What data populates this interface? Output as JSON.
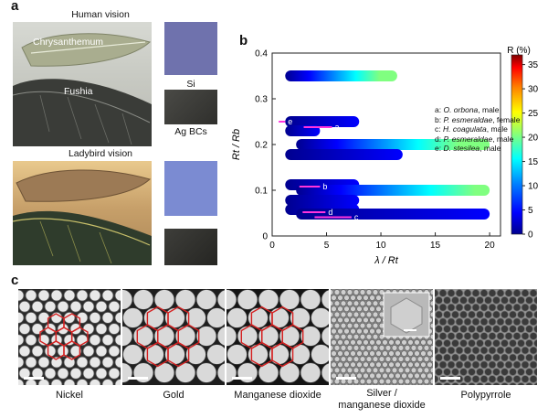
{
  "panel_a": {
    "label": "a",
    "human_title": "Human vision",
    "ladybird_title": "Ladybird vision",
    "leaf_labels": [
      "Chrysanthemum",
      "Fushia"
    ],
    "swatch_labels": [
      "Si",
      "Ag BCs"
    ]
  },
  "panel_b": {
    "label": "b",
    "legend": [
      {
        "letter": "a",
        "sep": ": ",
        "species": "O. orbona",
        "sex": ", male"
      },
      {
        "letter": "b",
        "sep": ": ",
        "species": "P. esmeraldae",
        "sex": ", female"
      },
      {
        "letter": "c",
        "sep": ": ",
        "species": "H. coagulata",
        "sex": ", male"
      },
      {
        "letter": "d",
        "sep": ": ",
        "species": "P. esmeraldae",
        "sex": ", male"
      },
      {
        "letter": "e",
        "sep": ": ",
        "species": "D. stesilea",
        "sex": ", male"
      }
    ]
  },
  "chart_data": {
    "type": "heatmap",
    "xlabel": "λ / Rt",
    "ylabel": "Rt / Rb",
    "xlim": [
      0,
      21
    ],
    "ylim": [
      0,
      0.4
    ],
    "x_ticks": [
      "0",
      "5",
      "10",
      "15",
      "20"
    ],
    "y_ticks": [
      "0",
      "0.1",
      "0.2",
      "0.3",
      "0.4"
    ],
    "colorbar": {
      "title": "R (%)",
      "range": [
        0,
        37
      ],
      "ticks": [
        "0",
        "5",
        "10",
        "15",
        "20",
        "25",
        "30",
        "35"
      ],
      "colors": [
        "#00008f",
        "#0000ff",
        "#0080ff",
        "#00ffff",
        "#80ff80",
        "#ffff00",
        "#ff8000",
        "#ff0000",
        "#800000"
      ]
    },
    "bands": [
      {
        "y": 0.35,
        "x0": 1.2,
        "x1": 11.5,
        "rmax": 22
      },
      {
        "y": 0.25,
        "x0": 1.2,
        "x1": 8.0,
        "rmax": 2
      },
      {
        "y": 0.23,
        "x0": 1.2,
        "x1": 4.4,
        "rmax": 2
      },
      {
        "y": 0.2,
        "x0": 2.2,
        "x1": 20.0,
        "rmax": 22
      },
      {
        "y": 0.178,
        "x0": 1.2,
        "x1": 12.0,
        "rmax": 2
      },
      {
        "y": 0.112,
        "x0": 1.2,
        "x1": 8.0,
        "rmax": 2
      },
      {
        "y": 0.1,
        "x0": 2.2,
        "x1": 20.0,
        "rmax": 20
      },
      {
        "y": 0.078,
        "x0": 1.2,
        "x1": 8.0,
        "rmax": 2
      },
      {
        "y": 0.058,
        "x0": 1.2,
        "x1": 8.0,
        "rmax": 2
      },
      {
        "y": 0.048,
        "x0": 2.2,
        "x1": 20.0,
        "rmax": 2
      }
    ],
    "markers": [
      {
        "label": "a",
        "x0": 2.9,
        "x1": 5.5,
        "y": 0.238
      },
      {
        "label": "b",
        "x0": 2.5,
        "x1": 4.4,
        "y": 0.108
      },
      {
        "label": "c",
        "x0": 3.9,
        "x1": 7.3,
        "y": 0.041
      },
      {
        "label": "d",
        "x0": 2.8,
        "x1": 4.9,
        "y": 0.052
      },
      {
        "label": "e",
        "x0": 0.6,
        "x1": 1.2,
        "y": 0.25
      }
    ]
  },
  "panel_c": {
    "label": "c",
    "materials": [
      "Nickel",
      "Gold",
      "Manganese dioxide",
      "Silver /",
      "manganese dioxide",
      "Polypyrrole"
    ]
  }
}
